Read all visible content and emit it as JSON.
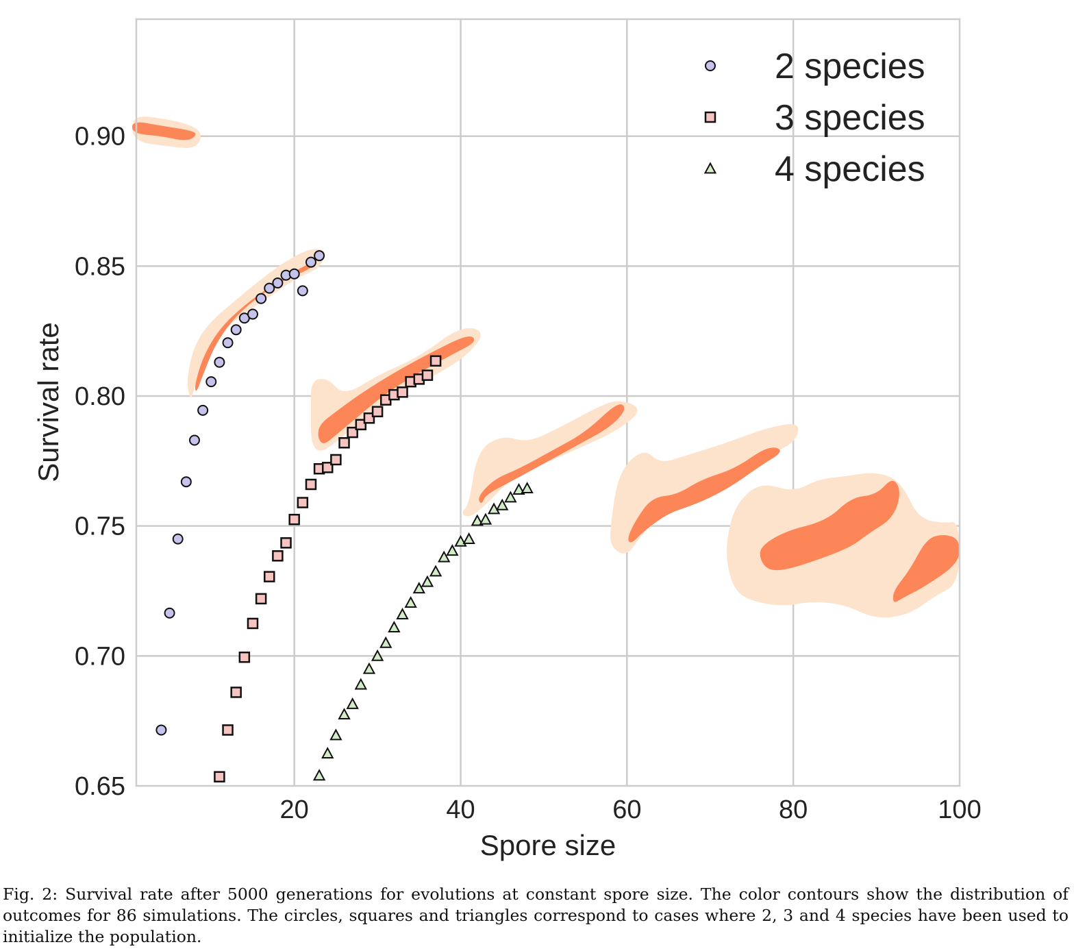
{
  "chart_data": {
    "type": "scatter",
    "title": "",
    "xlabel": "Spore size",
    "ylabel": "Survival rate",
    "xlim": [
      1,
      100
    ],
    "ylim": [
      0.65,
      0.945
    ],
    "xticks": [
      20,
      40,
      60,
      80,
      100
    ],
    "xtick_labels": [
      "20",
      "40",
      "60",
      "80",
      "100"
    ],
    "yticks": [
      0.65,
      0.7,
      0.75,
      0.8,
      0.85,
      0.9
    ],
    "ytick_labels": [
      "0.65",
      "0.70",
      "0.75",
      "0.80",
      "0.85",
      "0.90"
    ],
    "grid": true,
    "legend_position": "top-right",
    "series": [
      {
        "name": "2 species",
        "marker": "circle",
        "color": "#c5c3ec",
        "x": [
          4,
          5,
          6,
          7,
          8,
          9,
          10,
          11,
          12,
          13,
          14,
          15,
          16,
          17,
          18,
          19,
          20,
          21,
          22,
          23
        ],
        "y": [
          0.6715,
          0.7165,
          0.745,
          0.767,
          0.783,
          0.7945,
          0.8055,
          0.813,
          0.8205,
          0.8255,
          0.83,
          0.8315,
          0.8375,
          0.8415,
          0.8435,
          0.8465,
          0.847,
          0.8405,
          0.8515,
          0.854
        ]
      },
      {
        "name": "3 species",
        "marker": "square",
        "color": "#f5c4c1",
        "x": [
          11,
          12,
          13,
          14,
          15,
          16,
          17,
          18,
          19,
          20,
          21,
          22,
          23,
          24,
          25,
          26,
          27,
          28,
          29,
          30,
          31,
          32,
          33,
          34,
          35,
          36,
          37
        ],
        "y": [
          0.6535,
          0.6715,
          0.686,
          0.6995,
          0.7125,
          0.722,
          0.7305,
          0.7385,
          0.7435,
          0.7525,
          0.759,
          0.766,
          0.772,
          0.7725,
          0.7755,
          0.782,
          0.786,
          0.789,
          0.7915,
          0.794,
          0.7985,
          0.8005,
          0.8015,
          0.8055,
          0.8065,
          0.808,
          0.8135
        ]
      },
      {
        "name": "4 species",
        "marker": "triangle",
        "color": "#d2ecc8",
        "x": [
          23,
          24,
          25,
          26,
          27,
          28,
          29,
          30,
          31,
          32,
          33,
          34,
          35,
          36,
          37,
          38,
          39,
          40,
          41,
          42,
          43,
          44,
          45,
          46,
          47,
          48
        ],
        "y": [
          0.654,
          0.6625,
          0.6695,
          0.6775,
          0.6815,
          0.689,
          0.695,
          0.7,
          0.705,
          0.711,
          0.716,
          0.7205,
          0.726,
          0.7285,
          0.7325,
          0.738,
          0.7405,
          0.744,
          0.745,
          0.752,
          0.7525,
          0.7565,
          0.758,
          0.761,
          0.764,
          0.7645
        ]
      }
    ],
    "contours": {
      "levels": [
        "outer",
        "inner"
      ],
      "colors": [
        "#fde3cc",
        "#fc8658"
      ],
      "regions": [
        {
          "outer": [
            [
              0.5,
              0.908
            ],
            [
              4,
              0.907
            ],
            [
              8,
              0.904
            ],
            [
              9,
              0.9
            ],
            [
              8,
              0.895
            ],
            [
              5,
              0.896
            ],
            [
              0.5,
              0.898
            ]
          ],
          "inner": [
            [
              0.5,
              0.906
            ],
            [
              4,
              0.904
            ],
            [
              8,
              0.902
            ],
            [
              8.2,
              0.9
            ],
            [
              7,
              0.898
            ],
            [
              4,
              0.9
            ],
            [
              0.5,
              0.901
            ]
          ]
        },
        {
          "outer": [
            [
              7,
              0.806
            ],
            [
              8,
              0.82
            ],
            [
              10,
              0.829
            ],
            [
              13,
              0.837
            ],
            [
              16,
              0.845
            ],
            [
              19,
              0.852
            ],
            [
              22,
              0.857
            ],
            [
              24,
              0.856
            ],
            [
              23,
              0.849
            ],
            [
              20,
              0.845
            ],
            [
              17,
              0.838
            ],
            [
              14,
              0.832
            ],
            [
              11,
              0.824
            ],
            [
              9,
              0.814
            ],
            [
              8,
              0.803
            ],
            [
              7.5,
              0.798
            ]
          ],
          "inner": [
            [
              8,
              0.804
            ],
            [
              9,
              0.815
            ],
            [
              11,
              0.826
            ],
            [
              14,
              0.835
            ],
            [
              17,
              0.842
            ],
            [
              20,
              0.848
            ],
            [
              23,
              0.853
            ],
            [
              22,
              0.849
            ],
            [
              19,
              0.845
            ],
            [
              16,
              0.839
            ],
            [
              13,
              0.831
            ],
            [
              10.5,
              0.82
            ],
            [
              9,
              0.808
            ],
            [
              8.2,
              0.801
            ]
          ]
        },
        {
          "outer": [
            [
              22,
              0.795
            ],
            [
              22,
              0.806
            ],
            [
              24,
              0.807
            ],
            [
              26,
              0.8
            ],
            [
              30,
              0.808
            ],
            [
              35,
              0.815
            ],
            [
              40,
              0.827
            ],
            [
              43,
              0.825
            ],
            [
              41,
              0.816
            ],
            [
              37,
              0.808
            ],
            [
              33,
              0.802
            ],
            [
              29,
              0.793
            ],
            [
              25,
              0.782
            ],
            [
              23,
              0.778
            ],
            [
              22,
              0.782
            ]
          ],
          "inner": [
            [
              23,
              0.789
            ],
            [
              25,
              0.794
            ],
            [
              28,
              0.801
            ],
            [
              32,
              0.809
            ],
            [
              36,
              0.816
            ],
            [
              41,
              0.824
            ],
            [
              42,
              0.821
            ],
            [
              39,
              0.816
            ],
            [
              35,
              0.809
            ],
            [
              31,
              0.801
            ],
            [
              28,
              0.793
            ],
            [
              25,
              0.785
            ],
            [
              23.5,
              0.781
            ],
            [
              22.8,
              0.784
            ]
          ]
        },
        {
          "outer": [
            [
              41,
              0.758
            ],
            [
              42,
              0.779
            ],
            [
              45,
              0.785
            ],
            [
              48,
              0.782
            ],
            [
              52,
              0.788
            ],
            [
              56,
              0.795
            ],
            [
              59,
              0.799
            ],
            [
              62,
              0.795
            ],
            [
              59,
              0.787
            ],
            [
              55,
              0.781
            ],
            [
              50,
              0.774
            ],
            [
              46,
              0.768
            ],
            [
              43,
              0.758
            ],
            [
              41,
              0.753
            ],
            [
              40,
              0.755
            ]
          ],
          "inner": [
            [
              42,
              0.761
            ],
            [
              44,
              0.768
            ],
            [
              47,
              0.772
            ],
            [
              51,
              0.779
            ],
            [
              55,
              0.786
            ],
            [
              59,
              0.798
            ],
            [
              60,
              0.795
            ],
            [
              58,
              0.788
            ],
            [
              54,
              0.781
            ],
            [
              50,
              0.774
            ],
            [
              46,
              0.767
            ],
            [
              43,
              0.762
            ],
            [
              42.5,
              0.758
            ]
          ]
        },
        {
          "outer": [
            [
              58,
              0.75
            ],
            [
              59,
              0.771
            ],
            [
              62,
              0.78
            ],
            [
              64,
              0.774
            ],
            [
              67,
              0.777
            ],
            [
              72,
              0.782
            ],
            [
              77,
              0.788
            ],
            [
              81,
              0.79
            ],
            [
              80,
              0.781
            ],
            [
              76,
              0.777
            ],
            [
              72,
              0.767
            ],
            [
              68,
              0.758
            ],
            [
              65,
              0.755
            ],
            [
              62,
              0.748
            ],
            [
              60,
              0.738
            ],
            [
              58,
              0.742
            ]
          ],
          "inner": [
            [
              60,
              0.745
            ],
            [
              61,
              0.752
            ],
            [
              63,
              0.761
            ],
            [
              66,
              0.762
            ],
            [
              69,
              0.768
            ],
            [
              73,
              0.772
            ],
            [
              77,
              0.781
            ],
            [
              79,
              0.779
            ],
            [
              76,
              0.773
            ],
            [
              72,
              0.764
            ],
            [
              68,
              0.758
            ],
            [
              65,
              0.755
            ],
            [
              62,
              0.748
            ],
            [
              60.5,
              0.743
            ]
          ]
        },
        {
          "outer": [
            [
              72,
              0.745
            ],
            [
              73,
              0.758
            ],
            [
              76,
              0.767
            ],
            [
              80,
              0.763
            ],
            [
              83,
              0.768
            ],
            [
              86,
              0.769
            ],
            [
              90,
              0.771
            ],
            [
              93,
              0.767
            ],
            [
              95,
              0.753
            ],
            [
              98,
              0.751
            ],
            [
              100,
              0.752
            ],
            [
              100,
              0.728
            ],
            [
              97,
              0.723
            ],
            [
              94,
              0.716
            ],
            [
              90,
              0.714
            ],
            [
              86,
              0.72
            ],
            [
              82,
              0.721
            ],
            [
              79,
              0.719
            ],
            [
              75,
              0.721
            ],
            [
              73,
              0.725
            ],
            [
              72,
              0.735
            ]
          ],
          "inner": [
            [
              76,
              0.742
            ],
            [
              79,
              0.748
            ],
            [
              84,
              0.752
            ],
            [
              87,
              0.761
            ],
            [
              90,
              0.762
            ],
            [
              92,
              0.769
            ],
            [
              93,
              0.763
            ],
            [
              92,
              0.753
            ],
            [
              89,
              0.747
            ],
            [
              87,
              0.742
            ],
            [
              83,
              0.737
            ],
            [
              79,
              0.733
            ],
            [
              77,
              0.733
            ],
            [
              76,
              0.737
            ]
          ]
        },
        {
          "outer": [],
          "inner": [
            [
              92,
              0.725
            ],
            [
              94,
              0.733
            ],
            [
              96,
              0.745
            ],
            [
              98,
              0.747
            ],
            [
              100,
              0.745
            ],
            [
              100,
              0.736
            ],
            [
              96,
              0.727
            ],
            [
              93,
              0.722
            ],
            [
              92,
              0.72
            ]
          ]
        }
      ]
    }
  },
  "caption": "Fig. 2: Survival rate after 5000 generations for evolutions at constant spore size. The color contours show the distribution of outcomes for 86 simulations. The circles, squares and triangles correspond to cases where 2, 3 and 4 species have been used to initialize the population."
}
